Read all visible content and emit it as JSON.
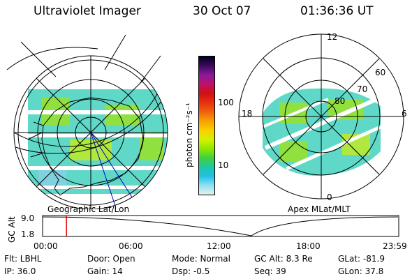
{
  "header": {
    "title": "Ultraviolet Imager",
    "date": "30 Oct 07",
    "time": "01:36:36 UT"
  },
  "colorbar": {
    "label": "photon cm⁻²s⁻¹",
    "ticks": [
      "100",
      "10"
    ],
    "colors": [
      "#000020",
      "#3a0a5a",
      "#8a1a9a",
      "#c0106a",
      "#d01010",
      "#e83010",
      "#f06010",
      "#f8a000",
      "#f8d000",
      "#d8f000",
      "#90e800",
      "#40d040",
      "#20c8a0",
      "#20c0e8",
      "#90e0f0",
      "#e8f0f0"
    ]
  },
  "left_map": {
    "caption": "Geographic Lat/Lon"
  },
  "right_map": {
    "caption": "Apex MLat/MLT",
    "mlt_labels": {
      "top": "12",
      "left": "18",
      "right": "6",
      "bottom": "0"
    },
    "lat_labels": [
      "60",
      "70",
      "80"
    ]
  },
  "timeline": {
    "ylabel": "GC Alt",
    "y_ticks": [
      "9.0",
      "1.8"
    ],
    "x_ticks": [
      "00:00",
      "06:00",
      "12:00",
      "18:00",
      "23:59"
    ],
    "marker_fraction": 0.067
  },
  "info": {
    "flt": "Flt: LBHL",
    "ip": "IP: 36.0",
    "door": "Door: Open",
    "gain": "Gain: 14",
    "mode": "Mode: Normal",
    "dsp": "Dsp:    -0.5",
    "gcalt": "GC Alt: 8.3 Re",
    "seq": "Seq: 39",
    "glat": "GLat:  -81.9",
    "glon": "GLon:  37.8"
  }
}
